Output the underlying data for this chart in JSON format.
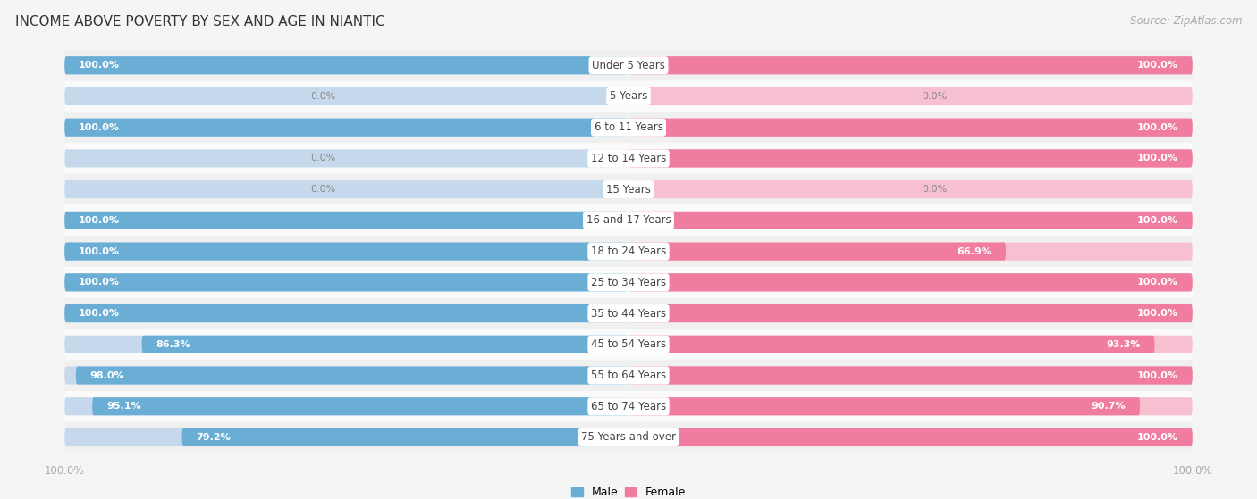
{
  "title": "INCOME ABOVE POVERTY BY SEX AND AGE IN NIANTIC",
  "source": "Source: ZipAtlas.com",
  "categories": [
    "Under 5 Years",
    "5 Years",
    "6 to 11 Years",
    "12 to 14 Years",
    "15 Years",
    "16 and 17 Years",
    "18 to 24 Years",
    "25 to 34 Years",
    "35 to 44 Years",
    "45 to 54 Years",
    "55 to 64 Years",
    "65 to 74 Years",
    "75 Years and over"
  ],
  "male": [
    100.0,
    0.0,
    100.0,
    0.0,
    0.0,
    100.0,
    100.0,
    100.0,
    100.0,
    86.3,
    98.0,
    95.1,
    79.2
  ],
  "female": [
    100.0,
    0.0,
    100.0,
    100.0,
    0.0,
    100.0,
    66.9,
    100.0,
    100.0,
    93.3,
    100.0,
    90.7,
    100.0
  ],
  "male_color": "#6aaed6",
  "female_color": "#f07ca0",
  "male_color_light": "#c6d9ec",
  "female_color_light": "#f7c0d0",
  "row_bg_even": "#f0f0f0",
  "row_bg_odd": "#fafafa",
  "bg_color": "#f5f5f5",
  "title_color": "#333333",
  "source_color": "#aaaaaa",
  "axis_label_color": "#aaaaaa",
  "cat_label_color": "#444444",
  "val_label_color_white": "#ffffff",
  "val_label_color_dark": "#888888"
}
